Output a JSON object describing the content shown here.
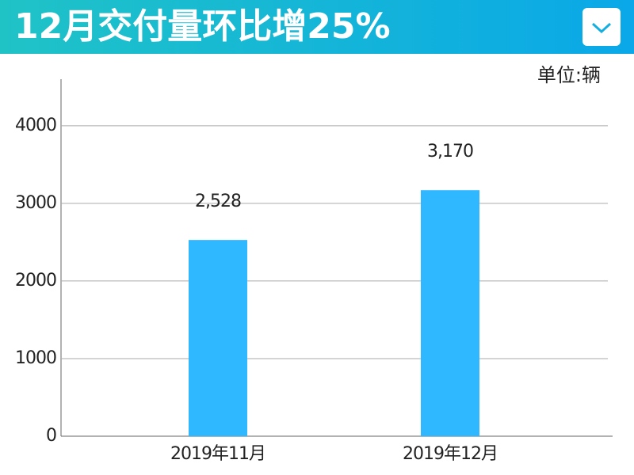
{
  "chart_data": {
    "type": "bar",
    "title": "12月交付量环比增25%",
    "unit_label": "单位:辆",
    "categories": [
      "2019年11月",
      "2019年12月"
    ],
    "values": [
      2528,
      3170
    ],
    "value_labels": [
      "2,528",
      "3,170"
    ],
    "color": "#2fb8ff",
    "ylim": [
      0,
      4600
    ],
    "yticks": [
      0,
      1000,
      2000,
      3000,
      4000
    ],
    "grid": true
  }
}
